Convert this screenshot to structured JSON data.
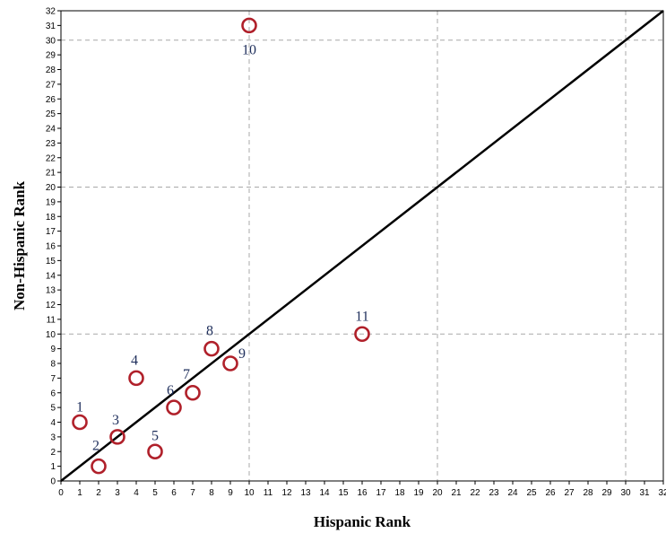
{
  "chart_data": {
    "type": "scatter",
    "title": "",
    "xlabel": "Hispanic Rank",
    "ylabel": "Non-Hispanic Rank",
    "xlim": [
      0,
      32
    ],
    "ylim": [
      0,
      32
    ],
    "x_ticks": [
      0,
      1,
      2,
      3,
      4,
      5,
      6,
      7,
      8,
      9,
      10,
      11,
      12,
      13,
      14,
      15,
      16,
      17,
      18,
      19,
      20,
      21,
      22,
      23,
      24,
      25,
      26,
      27,
      28,
      29,
      30,
      31,
      32
    ],
    "y_ticks": [
      0,
      1,
      2,
      3,
      4,
      5,
      6,
      7,
      8,
      9,
      10,
      11,
      12,
      13,
      14,
      15,
      16,
      17,
      18,
      19,
      20,
      21,
      22,
      23,
      24,
      25,
      26,
      27,
      28,
      29,
      30,
      31,
      32
    ],
    "grid": {
      "x": [
        10,
        20,
        30
      ],
      "y": [
        10,
        20,
        30
      ],
      "style": "dashed"
    },
    "reference_line": {
      "from": [
        0,
        0
      ],
      "to": [
        32,
        32
      ]
    },
    "marker_color": "#b0202a",
    "label_color": "#1f2f5c",
    "points": [
      {
        "label": "1",
        "x": 1,
        "y": 4
      },
      {
        "label": "2",
        "x": 2,
        "y": 1
      },
      {
        "label": "3",
        "x": 3,
        "y": 3
      },
      {
        "label": "4",
        "x": 4,
        "y": 7
      },
      {
        "label": "5",
        "x": 5,
        "y": 2
      },
      {
        "label": "6",
        "x": 6,
        "y": 5
      },
      {
        "label": "7",
        "x": 7,
        "y": 6
      },
      {
        "label": "8",
        "x": 8,
        "y": 9
      },
      {
        "label": "9",
        "x": 9,
        "y": 8
      },
      {
        "label": "10",
        "x": 10,
        "y": 31
      },
      {
        "label": "11",
        "x": 16,
        "y": 10
      }
    ]
  }
}
